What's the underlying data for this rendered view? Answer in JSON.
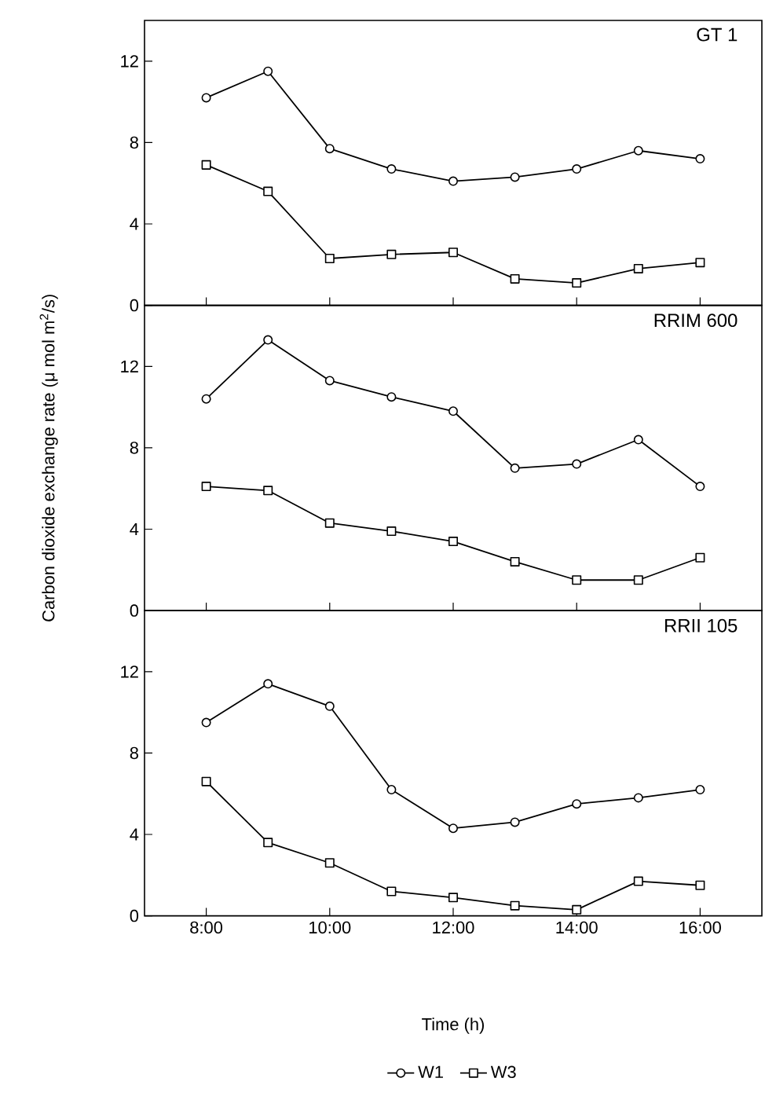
{
  "chart_data": [
    {
      "type": "line",
      "title": "GT 1",
      "x": [
        8,
        9,
        10,
        11,
        12,
        13,
        14,
        15,
        16
      ],
      "xlim": [
        7,
        17
      ],
      "xticks": [
        {
          "value": 8,
          "label": null
        },
        {
          "value": 10,
          "label": null
        },
        {
          "value": 12,
          "label": null
        },
        {
          "value": 14,
          "label": null
        },
        {
          "value": 16,
          "label": null
        }
      ],
      "ylim": [
        0,
        14
      ],
      "yticks": [
        0,
        4,
        8,
        12
      ],
      "tick_labels": "y",
      "series": [
        {
          "color": "#000000",
          "marker": "circle",
          "values": [
            10.2,
            11.5,
            7.7,
            6.7,
            6.1,
            6.3,
            6.7,
            7.6,
            7.2
          ]
        },
        {
          "color": "#000000",
          "marker": "square",
          "values": [
            6.9,
            5.6,
            2.3,
            2.5,
            2.6,
            1.3,
            1.1,
            1.8,
            2.1
          ]
        }
      ]
    },
    {
      "type": "line",
      "title": "RRIM 600",
      "ylabel": "Carbon dioxide exchange rate (μ mol m$^{2}$/s)",
      "x": [
        8,
        9,
        10,
        11,
        12,
        13,
        14,
        15,
        16
      ],
      "xlim": [
        7,
        17
      ],
      "xticks": [
        {
          "value": 8,
          "label": null
        },
        {
          "value": 10,
          "label": null
        },
        {
          "value": 12,
          "label": null
        },
        {
          "value": 14,
          "label": null
        },
        {
          "value": 16,
          "label": null
        }
      ],
      "ylim": [
        0,
        15
      ],
      "yticks": [
        0,
        4,
        8,
        12
      ],
      "tick_labels": "y",
      "series": [
        {
          "color": "#000000",
          "marker": "circle",
          "values": [
            10.4,
            13.3,
            11.3,
            10.5,
            9.8,
            7.0,
            7.2,
            8.4,
            6.1
          ]
        },
        {
          "color": "#000000",
          "marker": "square",
          "values": [
            6.1,
            5.9,
            4.3,
            3.9,
            3.4,
            2.4,
            1.5,
            1.5,
            2.6
          ]
        }
      ]
    },
    {
      "type": "line",
      "title": "RRII 105",
      "xlabel": "Time (h)",
      "x": [
        8,
        9,
        10,
        11,
        12,
        13,
        14,
        15,
        16
      ],
      "xlim": [
        7,
        17
      ],
      "xticks": [
        {
          "value": 8,
          "label": "8:00"
        },
        {
          "value": 10,
          "label": "10:00"
        },
        {
          "value": 12,
          "label": "12:00"
        },
        {
          "value": 14,
          "label": "14:00"
        },
        {
          "value": 16,
          "label": "16:00"
        }
      ],
      "ylim": [
        0,
        15
      ],
      "yticks": [
        0,
        4,
        8,
        12
      ],
      "legend": "bottom",
      "series": [
        {
          "name": "W1",
          "color": "#000000",
          "marker": "circle",
          "values": [
            9.5,
            11.4,
            10.3,
            6.2,
            4.3,
            4.6,
            5.5,
            5.8,
            6.2
          ]
        },
        {
          "name": "W3",
          "color": "#000000",
          "marker": "square",
          "values": [
            6.6,
            3.6,
            2.6,
            1.2,
            0.9,
            0.5,
            0.3,
            1.7,
            1.5
          ]
        }
      ]
    }
  ]
}
